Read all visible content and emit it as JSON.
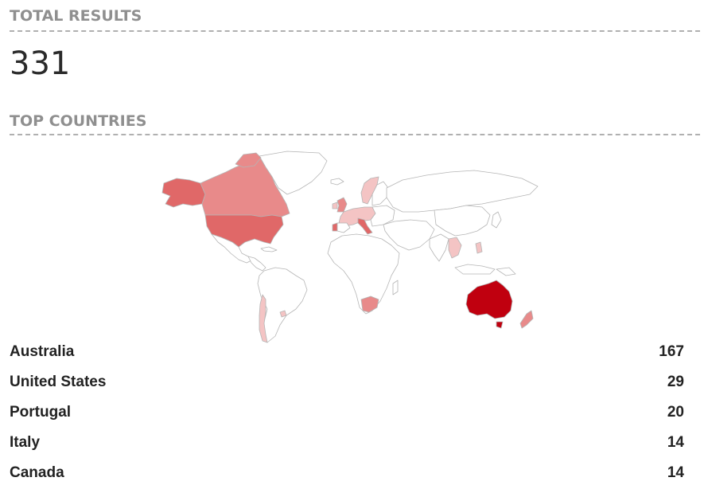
{
  "total_results": {
    "title": "TOTAL RESULTS",
    "value": "331"
  },
  "top_countries": {
    "title": "TOP COUNTRIES",
    "items": [
      {
        "name": "Australia",
        "count": "167"
      },
      {
        "name": "United States",
        "count": "29"
      },
      {
        "name": "Portugal",
        "count": "20"
      },
      {
        "name": "Italy",
        "count": "14"
      },
      {
        "name": "Canada",
        "count": "14"
      }
    ]
  },
  "colors": {
    "heading": "#8f8f8f",
    "highest": "#c0000f",
    "high": "#e06868",
    "medium": "#e88a8a",
    "low": "#f4c4c4",
    "no_data": "#ffffff",
    "border": "#b5b5b5"
  }
}
